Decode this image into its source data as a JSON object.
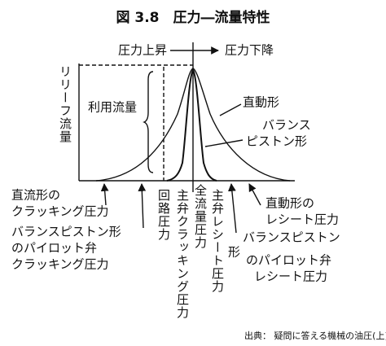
{
  "title": "図 3.8　圧力―流量特性",
  "direction": {
    "rise": "圧力上昇",
    "fall": "圧力下降"
  },
  "y_label": "リリーフ流量",
  "usable_flow": "利用流量",
  "curves": {
    "direct": "直動形",
    "balance": [
      "バランス",
      "ピストン形"
    ]
  },
  "points": {
    "direct_cracking": [
      "直流形の",
      "クラッキング圧力"
    ],
    "pilot_cracking": [
      "バランスピストン形",
      "のパイロット弁",
      "クラッキング圧力"
    ],
    "circuit": "回路圧力",
    "main_cracking": "主弁クラッキング圧力",
    "full_flow": "全流量圧力",
    "main_reseat": "主弁レシート圧力",
    "direct_reseat": [
      "直動形の",
      "レシート圧力"
    ],
    "pilot_reseat": [
      "バランスピストン",
      "形",
      "のパイロット弁",
      "レシート圧力"
    ]
  },
  "source": "出典： 疑問に答える機械の油圧(上)"
}
